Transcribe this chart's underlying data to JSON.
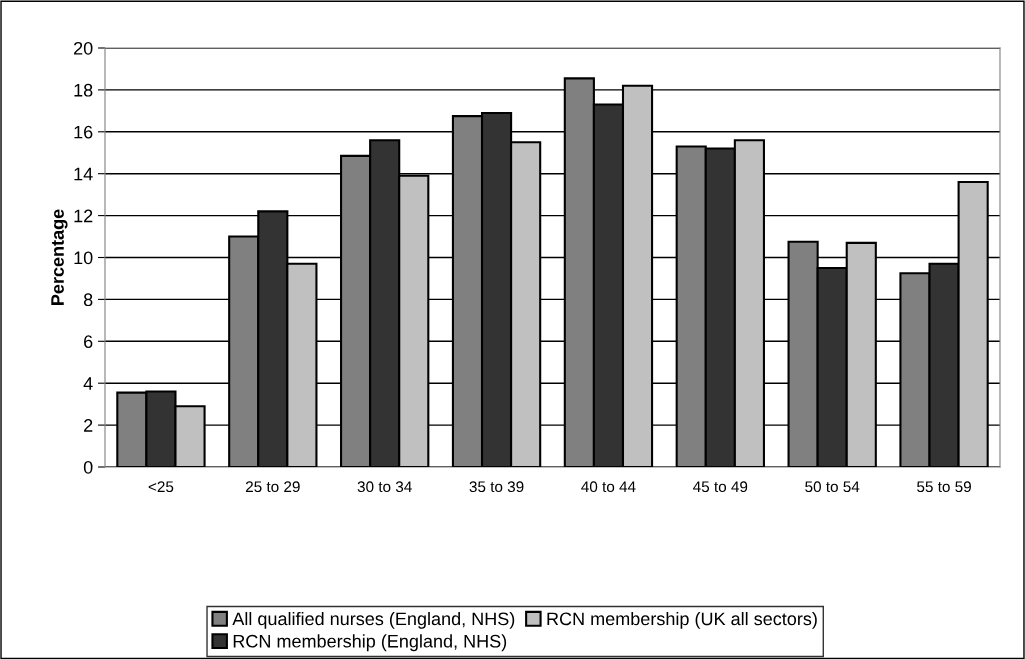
{
  "chart_data": {
    "type": "bar",
    "ylabel": "Percentage",
    "categories": [
      "<25",
      "25 to 29",
      "30 to 34",
      "35 to 39",
      "40 to 44",
      "45 to 49",
      "50 to 54",
      "55 to 59"
    ],
    "series": [
      {
        "name": "All qualified nurses (England, NHS)",
        "color": "#808080",
        "values": [
          3.55,
          11.0,
          14.85,
          16.75,
          18.55,
          15.3,
          10.75,
          9.25
        ]
      },
      {
        "name": "RCN membership (England, NHS)",
        "color": "#333333",
        "values": [
          3.6,
          12.2,
          15.6,
          16.9,
          17.3,
          15.2,
          9.5,
          9.7
        ]
      },
      {
        "name": "RCN membership (UK all sectors)",
        "color": "#c0c0c0",
        "values": [
          2.9,
          9.7,
          13.9,
          15.5,
          18.2,
          15.6,
          10.7,
          13.6
        ]
      }
    ],
    "ylim": [
      0,
      20
    ],
    "yticks": [
      0,
      2,
      4,
      6,
      8,
      10,
      12,
      14,
      16,
      18,
      20
    ],
    "grid": "y",
    "legend": "bottom"
  }
}
